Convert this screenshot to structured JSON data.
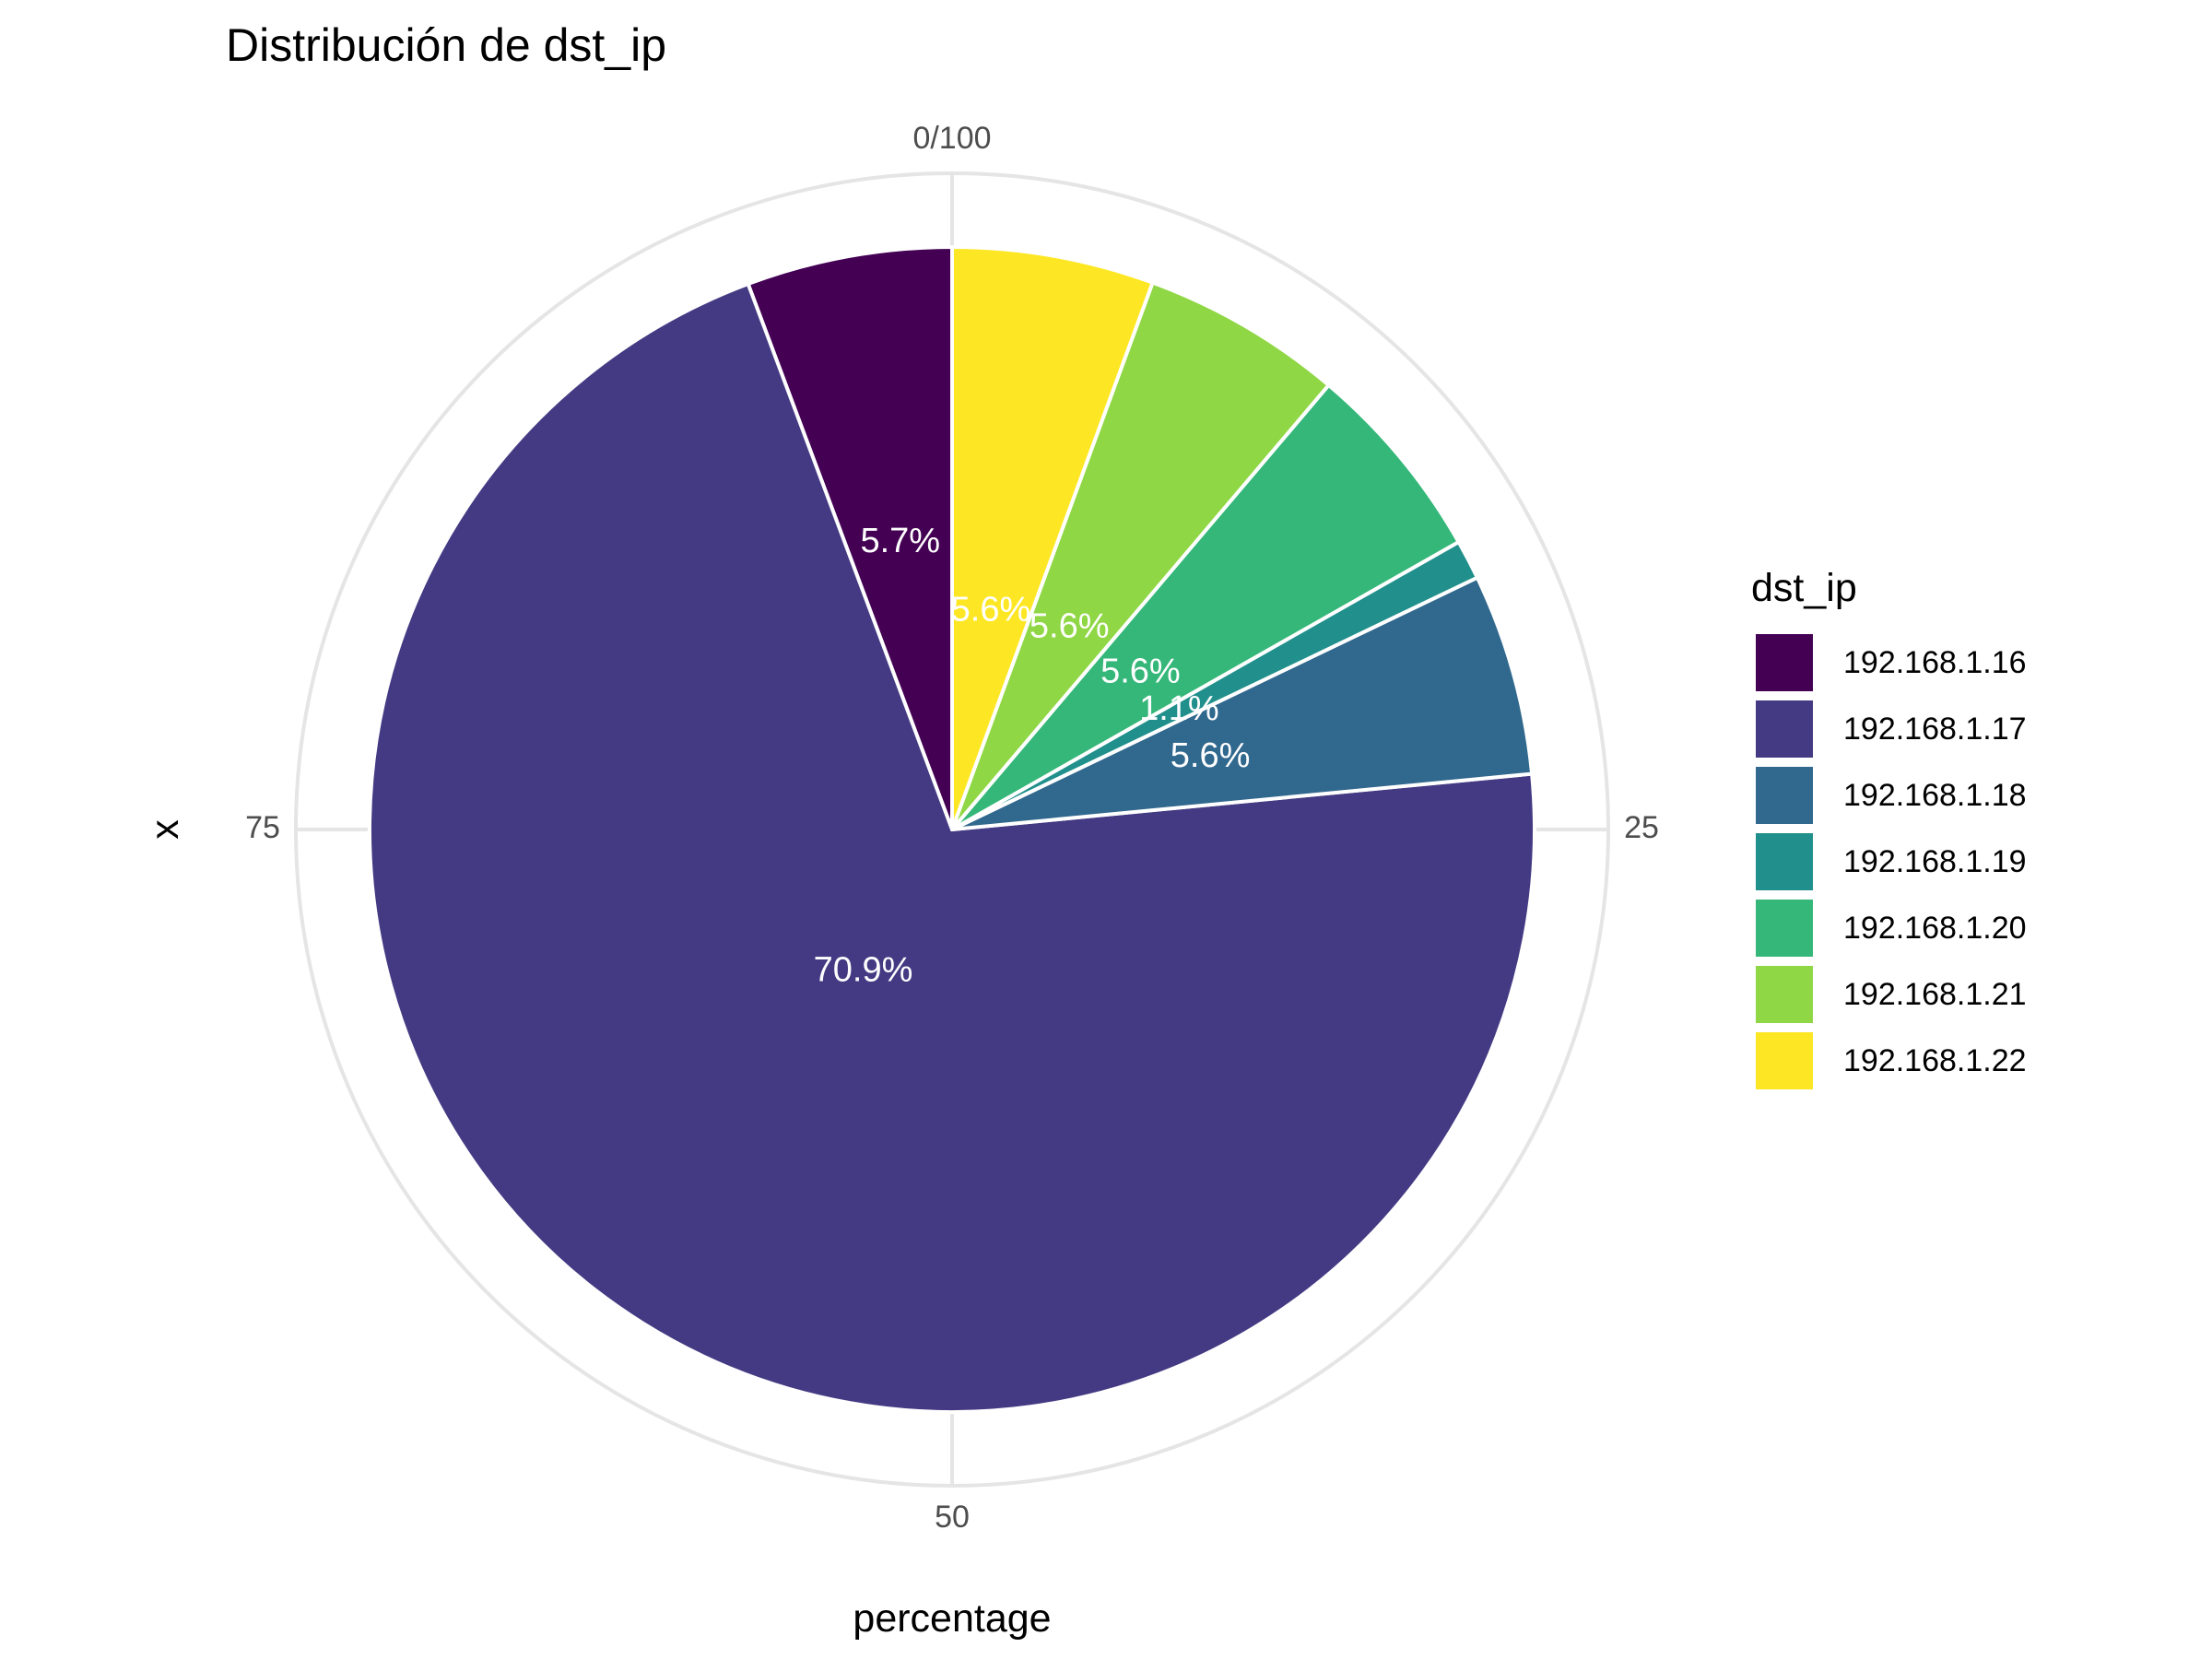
{
  "chart_data": {
    "type": "pie",
    "title": "Distribución de dst_ip",
    "xlabel": "percentage",
    "ylabel": "x",
    "theta_ticks": [
      "0/100",
      "25",
      "50",
      "75"
    ],
    "legend_title": "dst_ip",
    "legend_position": "right",
    "slices": [
      {
        "name": "192.168.1.16",
        "value": 5.7,
        "label": "5.7%",
        "color": "#440154"
      },
      {
        "name": "192.168.1.17",
        "value": 70.9,
        "label": "70.9%",
        "color": "#443A83"
      },
      {
        "name": "192.168.1.18",
        "value": 5.6,
        "label": "5.6%",
        "color": "#31688E"
      },
      {
        "name": "192.168.1.19",
        "value": 1.1,
        "label": "1.1%",
        "color": "#21908C"
      },
      {
        "name": "192.168.1.20",
        "value": 5.6,
        "label": "5.6%",
        "color": "#35B779"
      },
      {
        "name": "192.168.1.21",
        "value": 5.6,
        "label": "5.6%",
        "color": "#8FD744"
      },
      {
        "name": "192.168.1.22",
        "value": 5.6,
        "label": "5.6%",
        "color": "#FDE725"
      }
    ]
  }
}
